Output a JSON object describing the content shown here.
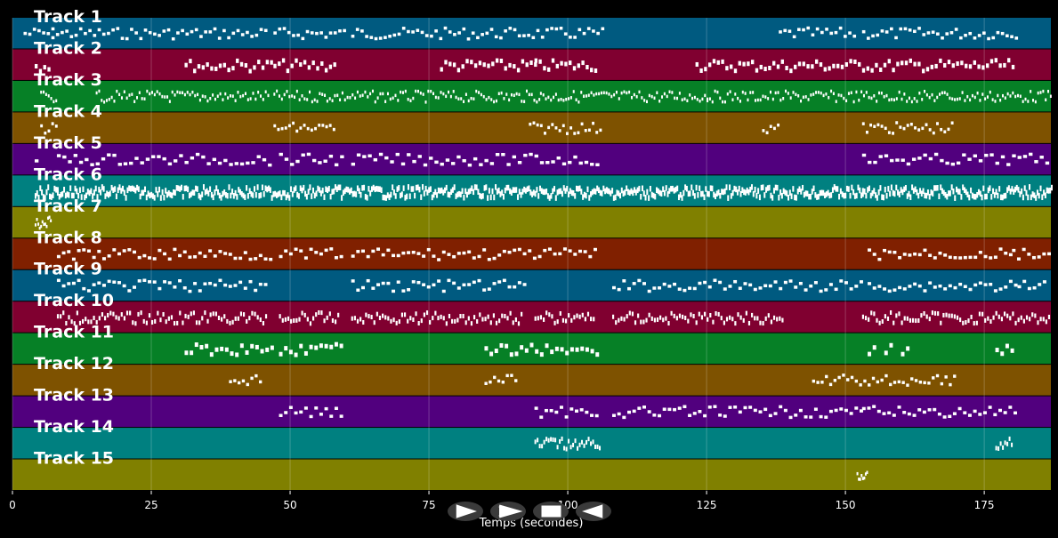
{
  "player": {
    "axis_label": "Temps (secondes)",
    "x_ticks": [
      0,
      25,
      50,
      75,
      100,
      125,
      150,
      175
    ],
    "x_range": [
      0,
      187
    ],
    "controls": [
      {
        "name": "rewind",
        "icon": "play-outline-icon"
      },
      {
        "name": "next",
        "icon": "chevron-right-icon"
      },
      {
        "name": "stop",
        "icon": "stop-icon"
      },
      {
        "name": "previous",
        "icon": "play-left-icon"
      }
    ]
  },
  "tracks": [
    {
      "label": "Track 1",
      "color": "#005a80",
      "segments": [
        [
          2,
          7
        ],
        [
          7,
          46
        ],
        [
          47,
          60
        ],
        [
          61,
          106
        ],
        [
          138,
          152
        ],
        [
          153,
          181
        ]
      ],
      "density": 1.2,
      "thickness": 1
    },
    {
      "label": "Track 2",
      "color": "#800030",
      "segments": [
        [
          4,
          7
        ],
        [
          31,
          47
        ],
        [
          47,
          58
        ],
        [
          77,
          94
        ],
        [
          94,
          105
        ],
        [
          123,
          143
        ],
        [
          143,
          153
        ],
        [
          153,
          180
        ]
      ],
      "density": 1.3,
      "thickness": 2
    },
    {
      "label": "Track 3",
      "color": "#068026",
      "segments": [
        [
          5,
          8
        ],
        [
          15,
          46
        ],
        [
          47,
          95
        ],
        [
          95,
          125
        ],
        [
          125,
          170
        ],
        [
          170,
          187
        ]
      ],
      "density": 2.2,
      "thickness": 1
    },
    {
      "label": "Track 4",
      "color": "#7e5200",
      "segments": [
        [
          5,
          8
        ],
        [
          47,
          58
        ],
        [
          93,
          106
        ],
        [
          135,
          138
        ],
        [
          153,
          169
        ]
      ],
      "density": 1.5,
      "thickness": 1
    },
    {
      "label": "Track 5",
      "color": "#51007e",
      "segments": [
        [
          4,
          5
        ],
        [
          8,
          47
        ],
        [
          48,
          60
        ],
        [
          61,
          106
        ],
        [
          153,
          180
        ],
        [
          180,
          187
        ]
      ],
      "density": 1.0,
      "thickness": 1
    },
    {
      "label": "Track 6",
      "color": "#008080",
      "segments": [
        [
          4,
          8
        ],
        [
          8,
          100
        ],
        [
          100,
          107
        ],
        [
          107,
          153
        ],
        [
          153,
          187
        ]
      ],
      "density": 3.5,
      "thickness": 3
    },
    {
      "label": "Track 7",
      "color": "#808000",
      "segments": [
        [
          4,
          7
        ]
      ],
      "density": 4.0,
      "thickness": 1
    },
    {
      "label": "Track 8",
      "color": "#802000",
      "segments": [
        [
          8,
          47
        ],
        [
          48,
          59
        ],
        [
          61,
          105
        ],
        [
          154,
          180
        ],
        [
          180,
          187
        ]
      ],
      "density": 1.1,
      "thickness": 1
    },
    {
      "label": "Track 9",
      "color": "#005a80",
      "segments": [
        [
          8,
          46
        ],
        [
          61,
          92
        ],
        [
          108,
          153
        ],
        [
          154,
          181
        ],
        [
          181,
          186
        ]
      ],
      "density": 1.1,
      "thickness": 1
    },
    {
      "label": "Track 10",
      "color": "#800030",
      "segments": [
        [
          8,
          46
        ],
        [
          48,
          59
        ],
        [
          61,
          92
        ],
        [
          94,
          105
        ],
        [
          108,
          139
        ],
        [
          153,
          187
        ]
      ],
      "density": 2.0,
      "thickness": 2
    },
    {
      "label": "Track 11",
      "color": "#068026",
      "segments": [
        [
          31,
          47
        ],
        [
          48,
          59
        ],
        [
          85,
          105
        ],
        [
          154,
          155
        ],
        [
          157,
          158
        ],
        [
          160,
          161
        ],
        [
          177,
          180
        ]
      ],
      "density": 1.1,
      "thickness": 2
    },
    {
      "label": "Track 12",
      "color": "#7e5200",
      "segments": [
        [
          39,
          45
        ],
        [
          85,
          91
        ],
        [
          144,
          170
        ]
      ],
      "density": 1.3,
      "thickness": 1
    },
    {
      "label": "Track 13",
      "color": "#51007e",
      "segments": [
        [
          48,
          59
        ],
        [
          94,
          105
        ],
        [
          108,
          153
        ],
        [
          153,
          181
        ]
      ],
      "density": 1.1,
      "thickness": 1
    },
    {
      "label": "Track 14",
      "color": "#008080",
      "segments": [
        [
          94,
          106
        ],
        [
          177,
          180
        ]
      ],
      "density": 2.5,
      "thickness": 2
    },
    {
      "label": "Track 15",
      "color": "#808000",
      "segments": [
        [
          152,
          154
        ]
      ],
      "density": 4.0,
      "thickness": 1
    }
  ]
}
